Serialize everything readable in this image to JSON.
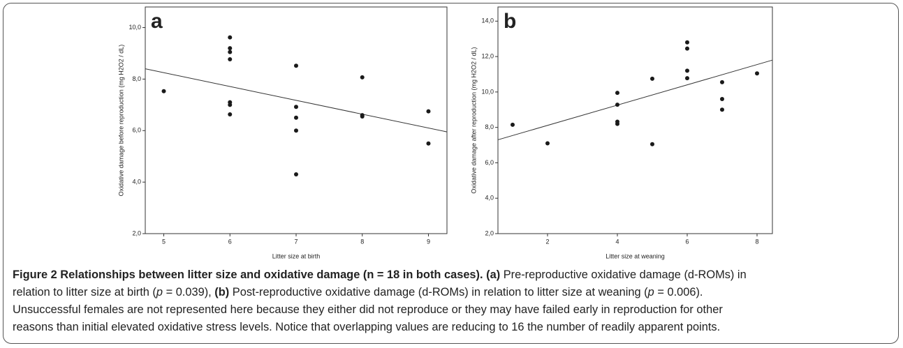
{
  "chart_data": [
    {
      "type": "scatter",
      "panel": "a",
      "y_label": "Oxidative damage before reproduction (mg H2O2 / dL)",
      "x_label": "Litter size at birth",
      "x": [
        5,
        6,
        6,
        6,
        6,
        6,
        6,
        6,
        7,
        7,
        7,
        7,
        7,
        8,
        8,
        8,
        9,
        9
      ],
      "values": [
        7.53,
        9.62,
        9.2,
        9.05,
        8.77,
        7.1,
        7.0,
        6.63,
        8.52,
        6.92,
        6.5,
        6.0,
        4.3,
        8.07,
        6.6,
        6.55,
        6.75,
        5.5
      ],
      "color": "#1a1a1a",
      "fit": {
        "x": [
          4.72,
          9.28
        ],
        "y": [
          8.4,
          5.95
        ]
      },
      "xlim": [
        4.72,
        9.28
      ],
      "xticks": [
        5,
        6,
        7,
        8,
        9
      ],
      "ylim": [
        2,
        10.8
      ],
      "yticks": [
        {
          "value": 2,
          "label": "2,0"
        },
        {
          "value": 4,
          "label": "4,0"
        },
        {
          "value": 6,
          "label": "6,0"
        },
        {
          "value": 8,
          "label": "8,0"
        },
        {
          "value": 10,
          "label": "10,0"
        }
      ]
    },
    {
      "type": "scatter",
      "panel": "b",
      "y_label": "Oxidative damage after reproduction (mg H2O2 / dL)",
      "x_label": "Litter size at weaning",
      "x": [
        1,
        2,
        4,
        4,
        4,
        4,
        5,
        5,
        6,
        6,
        6,
        6,
        7,
        7,
        7,
        8
      ],
      "values": [
        8.15,
        7.1,
        9.95,
        9.28,
        8.32,
        8.2,
        10.75,
        7.05,
        12.8,
        12.45,
        11.2,
        10.78,
        10.55,
        9.6,
        9.0,
        11.05
      ],
      "color": "#1a1a1a",
      "fit": {
        "x": [
          0.58,
          8.44
        ],
        "y": [
          7.3,
          11.8
        ]
      },
      "xlim": [
        0.58,
        8.44
      ],
      "xticks": [
        2,
        4,
        6,
        8
      ],
      "ylim": [
        2,
        14.8
      ],
      "yticks": [
        {
          "value": 2,
          "label": "2,0"
        },
        {
          "value": 4,
          "label": "4,0"
        },
        {
          "value": 6,
          "label": "6,0"
        },
        {
          "value": 8,
          "label": "8,0"
        },
        {
          "value": 10,
          "label": "10,0"
        },
        {
          "value": 12,
          "label": "12,0"
        },
        {
          "value": 14,
          "label": "14,0"
        }
      ]
    }
  ],
  "caption": [
    [
      {
        "text": "Figure 2 Relationships between litter size and oxidative damage (n = 18 in both cases). (a)",
        "style": "bold"
      },
      {
        "text": " Pre-reproductive oxidative damage (d-ROMs) in",
        "style": "normal"
      }
    ],
    [
      {
        "text": "relation to litter size at birth (",
        "style": "normal"
      },
      {
        "text": "p",
        "style": "italic"
      },
      {
        "text": " = 0.039), ",
        "style": "normal"
      },
      {
        "text": "(b)",
        "style": "bold"
      },
      {
        "text": " Post-reproductive oxidative damage (d-ROMs) in relation to litter size at weaning (",
        "style": "normal"
      },
      {
        "text": "p",
        "style": "italic"
      },
      {
        "text": " = 0.006).",
        "style": "normal"
      }
    ],
    [
      {
        "text": "Unsuccessful females are not represented here because they either did not reproduce or they may have failed early in reproduction for other",
        "style": "normal"
      }
    ],
    [
      {
        "text": "reasons than initial elevated oxidative stress levels. Notice that overlapping values are reducing to 16 the number of readily apparent points.",
        "style": "normal"
      }
    ]
  ]
}
